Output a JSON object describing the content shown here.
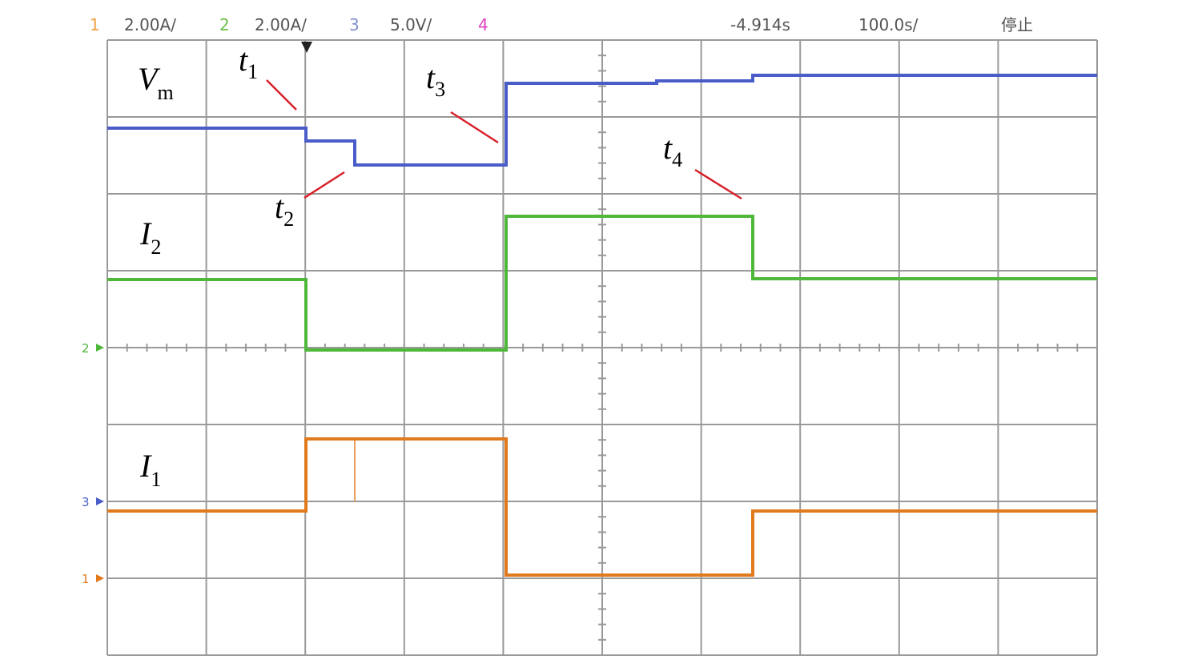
{
  "header": {
    "ch1": {
      "number": "1",
      "scale": "2.00A/"
    },
    "ch2": {
      "number": "2",
      "scale": "2.00A/"
    },
    "ch3": {
      "number": "3",
      "scale": "5.0V/"
    },
    "ch4": {
      "number": "4"
    },
    "time_offset": "-4.914s",
    "time_scale": "100.0s/",
    "status": "停止"
  },
  "traces": {
    "vm": {
      "symbol": "V",
      "subscript": "m"
    },
    "i2": {
      "symbol": "I",
      "subscript": "2"
    },
    "i1": {
      "symbol": "I",
      "subscript": "1"
    }
  },
  "events": [
    {
      "symbol": "t",
      "subscript": "1"
    },
    {
      "symbol": "t",
      "subscript": "2"
    },
    {
      "symbol": "t",
      "subscript": "3"
    },
    {
      "symbol": "t",
      "subscript": "4"
    }
  ],
  "channel_markers": [
    "2",
    "3",
    "1"
  ]
}
